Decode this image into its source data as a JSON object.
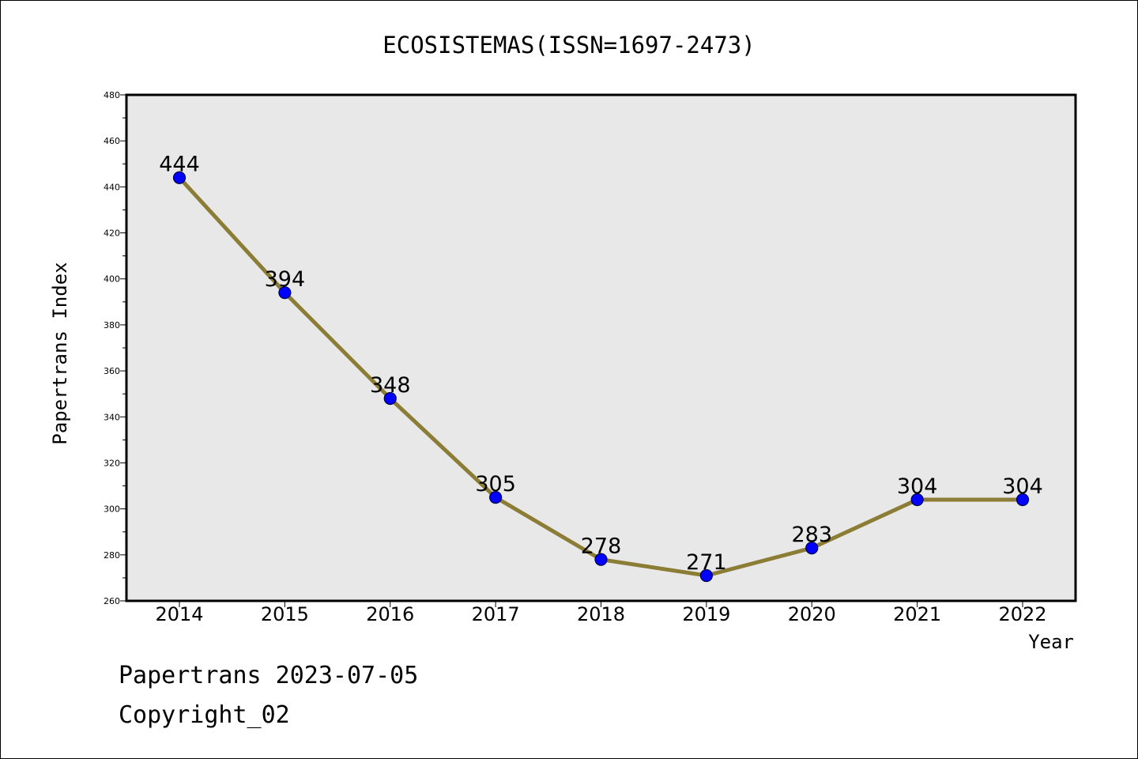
{
  "chart_data": {
    "type": "line",
    "title": "ECOSISTEMAS(ISSN=1697-2473)",
    "xlabel": "Year",
    "ylabel": "Papertrans Index",
    "categories": [
      "2014",
      "2015",
      "2016",
      "2017",
      "2018",
      "2019",
      "2020",
      "2021",
      "2022"
    ],
    "series": [
      {
        "values": [
          444,
          394,
          348,
          305,
          278,
          271,
          283,
          304,
          304
        ]
      }
    ],
    "data_labels": [
      "444",
      "394",
      "348",
      "305",
      "278",
      "271",
      "283",
      "304",
      "304"
    ],
    "ylim": [
      260,
      480
    ],
    "y_ticks": [
      "260",
      "280",
      "300",
      "320",
      "340",
      "360",
      "380",
      "400",
      "420",
      "440",
      "460",
      "480"
    ],
    "grid": false,
    "legend": "none",
    "colors": {
      "plot_background": "#e8e8e8",
      "line": "#8b7d35",
      "marker": "#0000ff"
    }
  },
  "footer": {
    "line1": "Papertrans 2023-07-05",
    "line2": "Copyright_02"
  }
}
